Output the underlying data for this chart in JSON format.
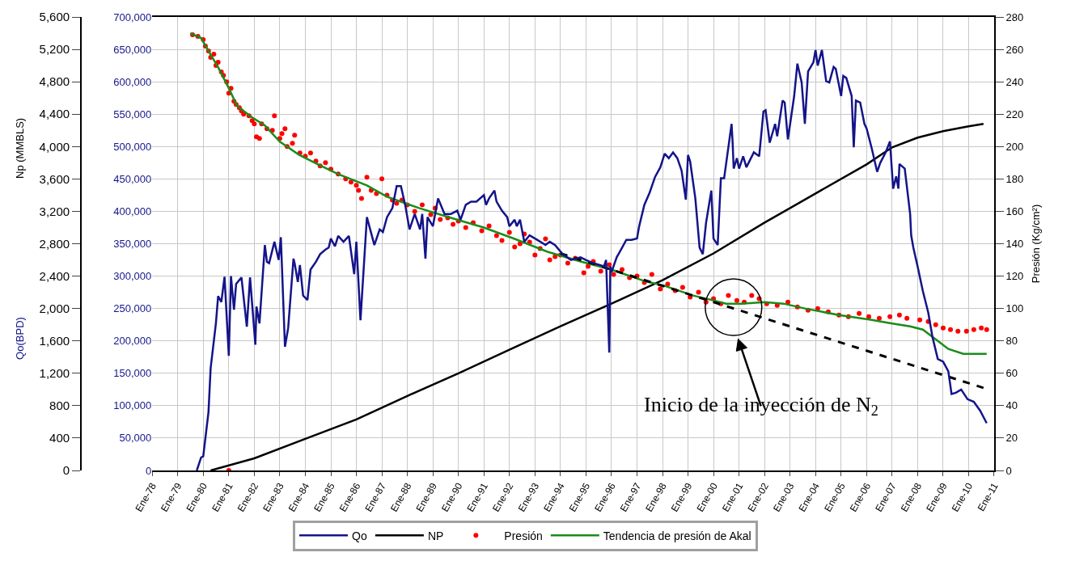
{
  "chart_data": {
    "type": "line",
    "ylabel": "Np (MMBLS)",
    "y2label": "Presión (Kg/cm²)",
    "y3label": "Qo(BPD)",
    "xlim": [
      "1978-01-01",
      "2011-01-01"
    ],
    "xticks": [
      {
        "value": "1978-01-01",
        "label": "Ene-78"
      },
      {
        "value": "1979-01-01",
        "label": "Ene-79"
      },
      {
        "value": "1980-01-01",
        "label": "Ene-80"
      },
      {
        "value": "1981-01-01",
        "label": "Ene-81"
      },
      {
        "value": "1982-01-01",
        "label": "Ene-82"
      },
      {
        "value": "1983-01-01",
        "label": "Ene-83"
      },
      {
        "value": "1984-01-01",
        "label": "Ene-84"
      },
      {
        "value": "1985-01-01",
        "label": "Ene-85"
      },
      {
        "value": "1986-01-01",
        "label": "Ene-86"
      },
      {
        "value": "1987-01-01",
        "label": "Ene-87"
      },
      {
        "value": "1988-01-01",
        "label": "Ene-88"
      },
      {
        "value": "1989-01-01",
        "label": "Ene-89"
      },
      {
        "value": "1990-01-01",
        "label": "Ene-90"
      },
      {
        "value": "1991-01-01",
        "label": "Ene-91"
      },
      {
        "value": "1992-01-01",
        "label": "Ene-92"
      },
      {
        "value": "1993-01-01",
        "label": "Ene-93"
      },
      {
        "value": "1994-01-01",
        "label": "Ene-94"
      },
      {
        "value": "1995-01-01",
        "label": "Ene-95"
      },
      {
        "value": "1996-01-01",
        "label": "Ene-96"
      },
      {
        "value": "1997-01-01",
        "label": "Ene-97"
      },
      {
        "value": "1998-01-01",
        "label": "Ene-98"
      },
      {
        "value": "1999-01-01",
        "label": "Ene-99"
      },
      {
        "value": "2000-01-01",
        "label": "Ene-00"
      },
      {
        "value": "2001-01-01",
        "label": "Ene-01"
      },
      {
        "value": "2002-01-01",
        "label": "Ene-02"
      },
      {
        "value": "2003-01-01",
        "label": "Ene-03"
      },
      {
        "value": "2004-01-01",
        "label": "Ene-04"
      },
      {
        "value": "2005-01-01",
        "label": "Ene-05"
      },
      {
        "value": "2006-01-01",
        "label": "Ene-06"
      },
      {
        "value": "2007-01-01",
        "label": "Ene-07"
      },
      {
        "value": "2008-01-01",
        "label": "Ene-08"
      },
      {
        "value": "2009-01-01",
        "label": "Ene-09"
      },
      {
        "value": "2010-01-01",
        "label": "Ene-10"
      },
      {
        "value": "2011-01-01",
        "label": "Ene-11"
      }
    ],
    "ylim": [
      0,
      5600
    ],
    "yticks": [
      0,
      400,
      800,
      {
        "value": 1200,
        "label": "1,200"
      },
      {
        "value": 1600,
        "label": "1,600"
      },
      {
        "value": 2000,
        "label": "2,000"
      },
      {
        "value": 2400,
        "label": "2,400"
      },
      {
        "value": 2800,
        "label": "2,800"
      },
      {
        "value": 3200,
        "label": "3,200"
      },
      {
        "value": 3600,
        "label": "3,600"
      },
      {
        "value": 4000,
        "label": "4,000"
      },
      {
        "value": 4400,
        "label": "4,400"
      },
      {
        "value": 4800,
        "label": "4,800"
      },
      {
        "value": 5200,
        "label": "5,200"
      },
      {
        "value": 5600,
        "label": "5,600"
      }
    ],
    "y2lim": [
      0,
      280
    ],
    "y2ticks": [
      0,
      20,
      40,
      60,
      80,
      100,
      120,
      140,
      160,
      180,
      200,
      220,
      240,
      260,
      280
    ],
    "y3lim": [
      0,
      700000
    ],
    "y3ticks": [
      0,
      {
        "value": 50000,
        "label": "50,000"
      },
      {
        "value": 100000,
        "label": "100,000"
      },
      {
        "value": 150000,
        "label": "150,000"
      },
      {
        "value": 200000,
        "label": "200,000"
      },
      {
        "value": 250000,
        "label": "250,000"
      },
      {
        "value": 300000,
        "label": "300,000"
      },
      {
        "value": 350000,
        "label": "350,000"
      },
      {
        "value": 400000,
        "label": "400,000"
      },
      {
        "value": 450000,
        "label": "450,000"
      },
      {
        "value": 500000,
        "label": "500,000"
      },
      {
        "value": 550000,
        "label": "550,000"
      },
      {
        "value": 600000,
        "label": "600,000"
      },
      {
        "value": 650000,
        "label": "650,000"
      },
      {
        "value": 700000,
        "label": "700,000"
      }
    ],
    "grid": true,
    "legend": "bottom",
    "annotations": [
      "Inicio de la inyección de N$_{2}$"
    ],
    "series": [
      {
        "name": "Qo",
        "axis": "y3",
        "color": "#14148a",
        "x": [
          "1979-10-01",
          "1979-12-01",
          "1980-01-01",
          "1980-03-16",
          "1980-04-16",
          "1980-06-01",
          "1980-07-01",
          "1980-08-01",
          "1980-09-16",
          "1980-11-01",
          "1981-01-01",
          "1981-02-01",
          "1981-03-16",
          "1981-04-16",
          "1981-07-01",
          "1981-09-16",
          "1981-11-01",
          "1982-01-16",
          "1982-02-01",
          "1982-03-16",
          "1982-06-01",
          "1982-07-01",
          "1982-08-01",
          "1982-10-16",
          "1982-12-16",
          "1983-01-16",
          "1983-03-16",
          "1983-05-01",
          "1983-07-16",
          "1983-08-01",
          "1983-09-16",
          "1983-10-16",
          "1983-12-01",
          "1984-02-01",
          "1984-03-16",
          "1984-06-01",
          "1984-08-01",
          "1984-10-16",
          "1984-12-01",
          "1985-01-01",
          "1985-03-01",
          "1985-04-16",
          "1985-07-01",
          "1985-09-16",
          "1985-12-01",
          "1986-01-01",
          "1986-03-01",
          "1986-06-01",
          "1986-09-16",
          "1986-12-01",
          "1987-01-16",
          "1987-03-16",
          "1987-06-01",
          "1987-08-01",
          "1987-10-01",
          "1987-12-01",
          "1988-02-01",
          "1988-04-16",
          "1988-07-01",
          "1988-08-01",
          "1988-09-16",
          "1988-10-16",
          "1989-01-01",
          "1989-03-16",
          "1989-06-16",
          "1989-09-16",
          "1989-12-16",
          "1990-02-01",
          "1990-04-16",
          "1990-07-01",
          "1990-09-16",
          "1991-01-01",
          "1991-02-01",
          "1991-03-16",
          "1991-06-01",
          "1991-07-01",
          "1991-09-16",
          "1991-12-01",
          "1992-01-01",
          "1992-03-16",
          "1992-04-16",
          "1992-06-01",
          "1992-08-01",
          "1992-10-16",
          "1993-02-01",
          "1993-06-01",
          "1993-08-01",
          "1993-10-16",
          "1994-02-01",
          "1994-06-01",
          "1994-10-16",
          "1995-01-01",
          "1995-04-16",
          "1995-09-16",
          "1995-10-16",
          "1995-12-01",
          "1995-12-16",
          "1996-01-01",
          "1996-03-16",
          "1996-06-01",
          "1996-08-01",
          "1996-10-16",
          "1997-01-01",
          "1997-02-01",
          "1997-04-16",
          "1997-07-01",
          "1997-09-16",
          "1997-12-01",
          "1998-02-01",
          "1998-04-01",
          "1998-06-01",
          "1998-08-01",
          "1998-10-01",
          "1998-12-01",
          "1999-01-01",
          "1999-02-01",
          "1999-04-16",
          "1999-06-16",
          "1999-08-01",
          "1999-09-16",
          "1999-12-01",
          "2000-01-01",
          "2000-03-01",
          "2000-04-16",
          "2000-06-01",
          "2000-09-16",
          "2000-10-01",
          "2000-10-16",
          "2000-12-01",
          "2001-01-01",
          "2001-03-01",
          "2001-04-16",
          "2001-08-01",
          "2001-10-16",
          "2001-12-16",
          "2002-01-16",
          "2002-03-16",
          "2002-06-01",
          "2002-07-01",
          "2002-09-16",
          "2002-10-16",
          "2002-12-01",
          "2003-03-01",
          "2003-04-16",
          "2003-06-16",
          "2003-08-01",
          "2003-09-16",
          "2003-12-01",
          "2004-01-01",
          "2004-02-01",
          "2004-04-01",
          "2004-06-01",
          "2004-07-16",
          "2004-09-16",
          "2004-10-16",
          "2005-01-01",
          "2005-02-01",
          "2005-03-16",
          "2005-06-01",
          "2005-07-01",
          "2005-08-01",
          "2005-10-01",
          "2005-12-01",
          "2006-01-01",
          "2006-03-16",
          "2006-06-01",
          "2006-07-16",
          "2006-10-01",
          "2006-12-01",
          "2007-01-16",
          "2007-03-01",
          "2007-04-01",
          "2007-04-16",
          "2007-07-01",
          "2007-09-16",
          "2007-10-01",
          "2007-11-01",
          "2008-01-01",
          "2008-03-16",
          "2008-06-01",
          "2008-08-01",
          "2008-10-16",
          "2009-01-01",
          "2009-03-16",
          "2009-05-01",
          "2009-07-01",
          "2009-09-16",
          "2009-12-16",
          "2010-03-16",
          "2010-06-16",
          "2010-09-16"
        ],
        "values": [
          0,
          20000,
          22000,
          90000,
          158000,
          200000,
          228000,
          269000,
          260000,
          299000,
          177000,
          300000,
          248000,
          288000,
          298000,
          222000,
          298000,
          194000,
          253000,
          227000,
          348000,
          322000,
          320000,
          353000,
          325000,
          360000,
          191000,
          220000,
          327000,
          320000,
          291000,
          317000,
          270000,
          263000,
          310000,
          322000,
          334000,
          341000,
          344000,
          358000,
          346000,
          362000,
          353000,
          362000,
          303000,
          353000,
          232000,
          391000,
          348000,
          372000,
          368000,
          391000,
          405000,
          439000,
          439000,
          410000,
          372000,
          396000,
          372000,
          396000,
          327000,
          391000,
          377000,
          420000,
          396000,
          396000,
          401000,
          387000,
          410000,
          415000,
          415000,
          425000,
          410000,
          420000,
          432000,
          415000,
          401000,
          391000,
          377000,
          387000,
          377000,
          387000,
          353000,
          363000,
          356000,
          348000,
          353000,
          348000,
          334000,
          325000,
          329000,
          325000,
          320000,
          315000,
          325000,
          182000,
          315000,
          306000,
          329000,
          344000,
          356000,
          356000,
          358000,
          377000,
          410000,
          429000,
          453000,
          468000,
          489000,
          482000,
          491000,
          482000,
          463000,
          418000,
          487000,
          477000,
          420000,
          344000,
          334000,
          382000,
          432000,
          358000,
          348000,
          451000,
          451000,
          535000,
          506000,
          466000,
          482000,
          466000,
          485000,
          468000,
          491000,
          485000,
          554000,
          556000,
          506000,
          535000,
          516000,
          571000,
          568000,
          511000,
          578000,
          628000,
          599000,
          535000,
          616000,
          630000,
          649000,
          625000,
          649000,
          601000,
          599000,
          623000,
          620000,
          578000,
          609000,
          606000,
          578000,
          499000,
          571000,
          568000,
          535000,
          528000,
          497000,
          461000,
          475000,
          491000,
          508000,
          435000,
          454000,
          435000,
          473000,
          466000,
          396000,
          363000,
          344000,
          315000,
          277000,
          244000,
          206000,
          172000,
          168000,
          153000,
          118000,
          120000,
          125000,
          110000,
          106000,
          92000,
          73000
        ]
      },
      {
        "name": "NP",
        "axis": "y",
        "color": "#000000",
        "x": [
          "1980-04-16",
          "1982-01-01",
          "1984-01-01",
          "1986-01-01",
          "1988-01-01",
          "1990-01-01",
          "1992-01-01",
          "1994-01-01",
          "1996-01-01",
          "1998-01-01",
          "2000-01-01",
          "2002-01-01",
          "2004-01-01",
          "2006-01-01",
          "2007-01-01",
          "2008-01-01",
          "2009-01-01",
          "2010-01-01",
          "2010-08-01"
        ],
        "values": [
          0,
          150,
          390,
          630,
          920,
          1200,
          1490,
          1780,
          2060,
          2350,
          2680,
          3060,
          3420,
          3780,
          3990,
          4110,
          4190,
          4250,
          4280
        ]
      },
      {
        "name": "Presión",
        "type": "scatter",
        "axis": "y2",
        "color": "#ff0000",
        "marker": "circle",
        "x": [
          "1979-08-01",
          "1979-10-16",
          "1980-01-01",
          "1980-02-01",
          "1980-03-16",
          "1980-04-16",
          "1980-06-01",
          "1980-07-01",
          "1980-08-01",
          "1980-09-16",
          "1980-10-16",
          "1980-12-01",
          "1981-01-01",
          "1981-02-01",
          "1981-03-16",
          "1981-04-16",
          "1981-06-01",
          "1981-07-01",
          "1981-08-01",
          "1981-10-16",
          "1981-12-01",
          "1982-01-01",
          "1982-02-01",
          "1982-03-16",
          "1982-04-16",
          "1982-07-01",
          "1982-09-16",
          "1982-10-16",
          "1983-01-01",
          "1983-02-01",
          "1983-03-16",
          "1983-04-16",
          "1983-07-01",
          "1983-08-01",
          "1983-10-16",
          "1984-01-01",
          "1984-03-16",
          "1984-06-01",
          "1984-08-01",
          "1984-10-16",
          "1985-01-01",
          "1985-04-16",
          "1985-08-01",
          "1985-10-16",
          "1986-01-01",
          "1986-02-01",
          "1986-03-16",
          "1986-06-01",
          "1986-08-01",
          "1986-10-16",
          "1987-01-01",
          "1987-03-16",
          "1987-06-01",
          "1987-08-01",
          "1987-10-16",
          "1988-01-01",
          "1988-04-16",
          "1988-08-01",
          "1988-12-01",
          "1989-02-01",
          "1989-04-16",
          "1989-08-01",
          "1989-10-16",
          "1990-01-01",
          "1990-04-16",
          "1990-08-01",
          "1990-12-01",
          "1991-03-16",
          "1991-07-01",
          "1991-09-16",
          "1992-01-01",
          "1992-03-16",
          "1992-06-01",
          "1992-08-01",
          "1992-10-16",
          "1993-01-01",
          "1993-03-16",
          "1993-06-01",
          "1993-08-01",
          "1993-10-16",
          "1994-01-01",
          "1994-04-16",
          "1994-08-01",
          "1994-12-01",
          "1995-02-01",
          "1995-04-16",
          "1995-08-01",
          "1995-12-01",
          "1996-02-01",
          "1996-06-01",
          "1996-09-16",
          "1997-01-01",
          "1997-04-16",
          "1997-08-01",
          "1997-12-01",
          "1998-03-16",
          "1998-07-01",
          "1998-10-16",
          "1999-02-01",
          "1999-06-01",
          "1999-09-16",
          "2000-01-01",
          "2000-04-16",
          "2000-08-01",
          "2000-12-01",
          "2001-03-16",
          "2001-07-01",
          "2001-10-16",
          "2002-02-01",
          "2002-07-01",
          "2002-12-01",
          "2003-04-16",
          "2003-09-16",
          "2004-02-01",
          "2004-07-01",
          "2004-12-01",
          "2005-04-16",
          "2005-09-16",
          "2006-02-01",
          "2006-07-01",
          "2006-12-01",
          "2007-04-16",
          "2007-08-01",
          "2008-02-01",
          "2008-06-01",
          "2008-09-16",
          "2009-01-01",
          "2009-04-16",
          "2009-08-01",
          "2009-12-01",
          "2010-03-16",
          "2010-07-01",
          "2010-09-16",
          "1981-01-01"
        ],
        "values": [
          269,
          268,
          266,
          262,
          259,
          255,
          257,
          250,
          252,
          246,
          244,
          240,
          233,
          236,
          228,
          226,
          224,
          222,
          220,
          219,
          216,
          214,
          206,
          205,
          214,
          211,
          210,
          219,
          205,
          208,
          211,
          200,
          202,
          207,
          196,
          194,
          196,
          191,
          188,
          190,
          186,
          183,
          180,
          178,
          176,
          173,
          168,
          181,
          173,
          171,
          180,
          170,
          167,
          165,
          167,
          164,
          160,
          164,
          158,
          162,
          155,
          156,
          152,
          154,
          150,
          153,
          148,
          151,
          145,
          142,
          147,
          138,
          140,
          146,
          141,
          133,
          137,
          143,
          130,
          132,
          133,
          128,
          131,
          122,
          126,
          129,
          123,
          127,
          121,
          124,
          119,
          120,
          116,
          121,
          112,
          115,
          111,
          113,
          107,
          110,
          104,
          106,
          103,
          108,
          105,
          104,
          108,
          106,
          103,
          102,
          104,
          101,
          99,
          100,
          98,
          96,
          95,
          97,
          95,
          94,
          95,
          96,
          94,
          93,
          92,
          90,
          88,
          87,
          86,
          86,
          87,
          88,
          87,
          0
        ]
      },
      {
        "name": "Tendencia de presión de Akal",
        "axis": "y2",
        "color": "#1a8c1a",
        "x": [
          "1979-07-01",
          "1979-12-01",
          "1980-03-16",
          "1980-08-01",
          "1981-01-01",
          "1981-05-01",
          "1981-12-01",
          "1982-06-01",
          "1983-01-01",
          "1983-10-01",
          "1984-07-01",
          "1985-04-16",
          "1986-06-01",
          "1987-03-16",
          "1988-06-16",
          "1989-09-16",
          "1991-01-01",
          "1992-03-16",
          "1993-07-01",
          "1994-10-16",
          "1996-01-01",
          "1997-04-16",
          "1998-02-01",
          "1999-03-16",
          "2000-01-01",
          "2000-07-01",
          "2001-02-01",
          "2002-01-01",
          "2002-10-01",
          "2003-08-01",
          "2004-12-01",
          "2006-03-16",
          "2006-12-01",
          "2007-09-16",
          "2008-03-16",
          "2008-09-16",
          "2009-03-16",
          "2009-10-16",
          "2010-09-16"
        ],
        "values": [
          270,
          267,
          259,
          249,
          236,
          225,
          218,
          213,
          203,
          195,
          189,
          183,
          176,
          169,
          162,
          156,
          150,
          143,
          135,
          129,
          124,
          117,
          114,
          108,
          105,
          103,
          103,
          104,
          103,
          100,
          96,
          93,
          91,
          89,
          87,
          81,
          75,
          72,
          72
        ]
      },
      {
        "axis": "y2",
        "color": "#000000",
        "line_style": "dashed",
        "x": [
          "1994-01-01",
          "2010-08-01"
        ],
        "values": [
          134,
          51
        ]
      }
    ]
  }
}
